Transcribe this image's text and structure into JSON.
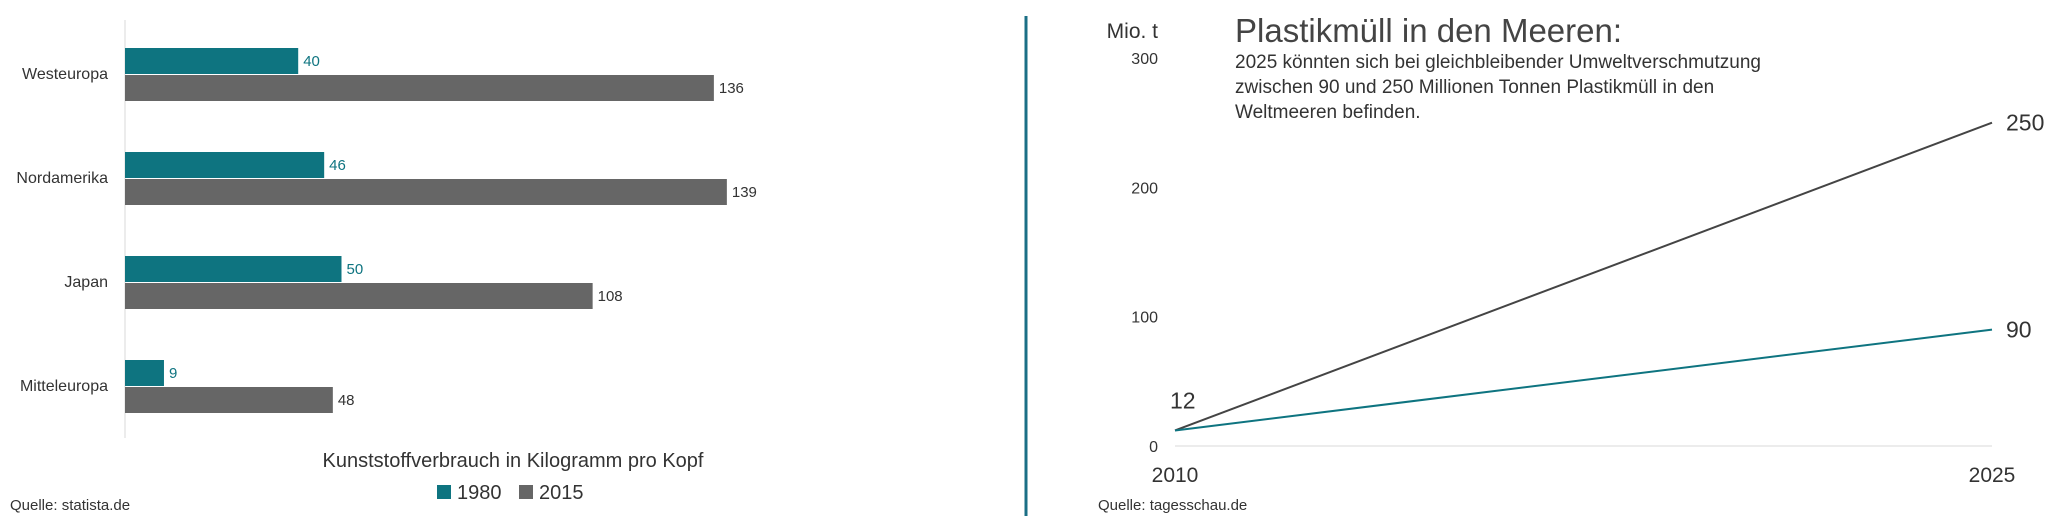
{
  "colors": {
    "teal": "#0e7480",
    "gray": "#666666",
    "text": "#333333",
    "axis": "#d9d9d9",
    "divider": "#1b6f86"
  },
  "left": {
    "source": "Quelle: statista.de",
    "legend": [
      {
        "label": "1980",
        "color": "#0e7480"
      },
      {
        "label": "2015",
        "color": "#666666"
      }
    ]
  },
  "right": {
    "title": "Plastikmüll in den Meeren:",
    "subtitle_lines": [
      "2025 könnten sich bei gleichbleibender Umweltverschmutzung",
      "zwischen 90 und 250 Millionen Tonnen Plastikmüll in den",
      "Weltmeeren befinden."
    ],
    "source": "Quelle: tagesschau.de"
  },
  "chart_data": [
    {
      "type": "bar",
      "orientation": "horizontal",
      "categories": [
        "Westeuropa",
        "Nordamerika",
        "Japan",
        "Mitteleuropa"
      ],
      "series": [
        {
          "name": "1980",
          "values": [
            40,
            46,
            50,
            9
          ]
        },
        {
          "name": "2015",
          "values": [
            136,
            139,
            108,
            48
          ]
        }
      ],
      "xlabel": "Kunststoffverbrauch in Kilogramm pro Kopf",
      "legend_position": "bottom"
    },
    {
      "type": "line",
      "x": [
        2010,
        2025
      ],
      "series": [
        {
          "values": [
            12,
            250
          ],
          "color": "#444444"
        },
        {
          "values": [
            12,
            90
          ],
          "color": "#0e7480"
        }
      ],
      "start_label": "12",
      "ylabel": "Mio. t",
      "ylim": [
        0,
        300
      ],
      "yticks": [
        0,
        100,
        200,
        300
      ],
      "xticks": [
        "2010",
        "2025"
      ],
      "grid": false
    }
  ]
}
